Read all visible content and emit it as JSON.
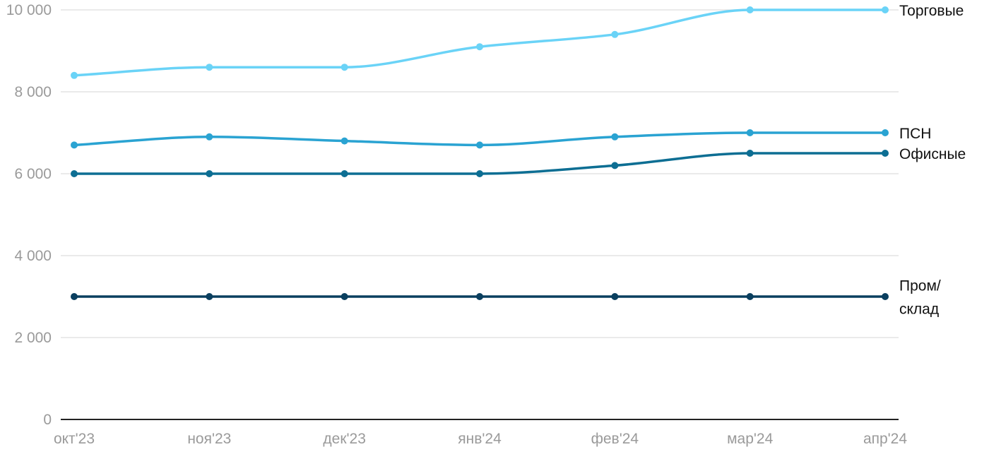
{
  "chart_data": {
    "type": "line",
    "categories": [
      "окт'23",
      "ноя'23",
      "дек'23",
      "янв'24",
      "фев'24",
      "мар'24",
      "апр'24"
    ],
    "ylim": [
      0,
      10000
    ],
    "yticks": [
      {
        "value": 0,
        "label": "0"
      },
      {
        "value": 2000,
        "label": "2 000"
      },
      {
        "value": 4000,
        "label": "4 000"
      },
      {
        "value": 6000,
        "label": "6 000"
      },
      {
        "value": 8000,
        "label": "8 000"
      },
      {
        "value": 10000,
        "label": "10 000"
      }
    ],
    "grid": true,
    "series": [
      {
        "name": "Торговые",
        "label_lines": [
          "Торговые"
        ],
        "color": "#6ad3f7",
        "values": [
          8400,
          8600,
          8600,
          9100,
          9400,
          10000,
          10000
        ]
      },
      {
        "name": "ПСН",
        "label_lines": [
          "ПСН"
        ],
        "color": "#2aa3d2",
        "values": [
          6700,
          6900,
          6800,
          6700,
          6900,
          7000,
          7000
        ]
      },
      {
        "name": "Офисные",
        "label_lines": [
          "Офисные"
        ],
        "color": "#0d6e93",
        "values": [
          6000,
          6000,
          6000,
          6000,
          6200,
          6500,
          6500
        ]
      },
      {
        "name": "Пром/склад",
        "label_lines": [
          "Пром/",
          "склад"
        ],
        "color": "#0a3f5f",
        "values": [
          3000,
          3000,
          3000,
          3000,
          3000,
          3000,
          3000
        ]
      }
    ]
  }
}
